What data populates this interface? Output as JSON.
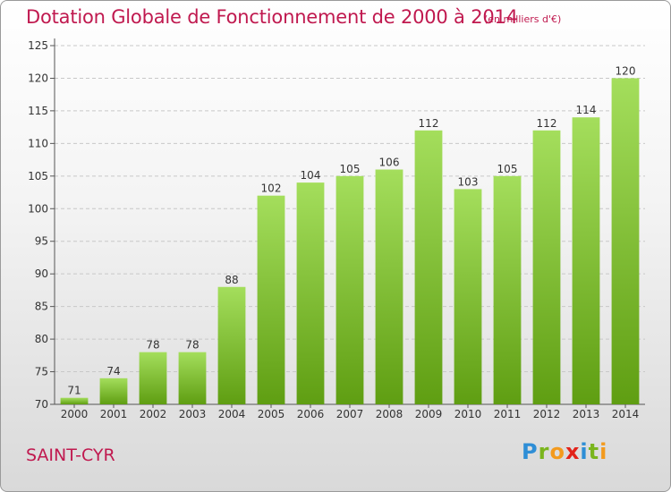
{
  "header": {
    "title": "Dotation Globale de Fonctionnement de 2000 à 2014",
    "unit": "(en milliers d'€)"
  },
  "footer": {
    "commune": "SAINT-CYR",
    "brand": [
      "P",
      "r",
      "o",
      "x",
      "i",
      "t",
      "i"
    ]
  },
  "colors": {
    "title": "#c0194f",
    "bar_light": "#a4de5c",
    "bar_dark": "#5f9e12",
    "brand": [
      "#2e8ed6",
      "#7ab51d",
      "#f39a1d",
      "#e2231a",
      "#2e8ed6",
      "#7ab51d",
      "#f39a1d"
    ]
  },
  "chart_data": {
    "type": "bar",
    "categories": [
      "2000",
      "2001",
      "2002",
      "2003",
      "2004",
      "2005",
      "2006",
      "2007",
      "2008",
      "2009",
      "2010",
      "2011",
      "2012",
      "2013",
      "2014"
    ],
    "values": [
      71,
      74,
      78,
      78,
      88,
      102,
      104,
      105,
      106,
      112,
      103,
      105,
      112,
      114,
      120
    ],
    "ylim": [
      70,
      125
    ],
    "yticks": [
      70,
      75,
      80,
      85,
      90,
      95,
      100,
      105,
      110,
      115,
      120,
      125
    ],
    "grid": true,
    "data_labels": true
  }
}
